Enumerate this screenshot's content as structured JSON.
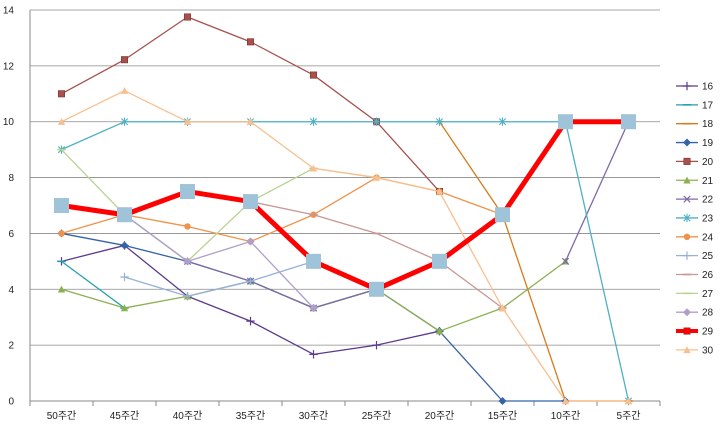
{
  "chart_data": {
    "type": "line",
    "categories": [
      "50주간",
      "45주간",
      "40주간",
      "35주간",
      "30주간",
      "25주간",
      "20주간",
      "15주간",
      "10주간",
      "5주간"
    ],
    "ylim": [
      0,
      14
    ],
    "yticks": [
      0,
      2,
      4,
      6,
      8,
      10,
      12,
      14
    ],
    "grid": true,
    "legend_position": "right",
    "series": [
      {
        "name": "16",
        "color": "#5b3b8c",
        "marker": "plus",
        "values": [
          5,
          5.57,
          3.75,
          2.86,
          1.67,
          2,
          2.5,
          null,
          null,
          null
        ]
      },
      {
        "name": "17",
        "color": "#23a0b0",
        "marker": "dash",
        "values": [
          5,
          3.33,
          null,
          null,
          null,
          null,
          null,
          null,
          null,
          null
        ]
      },
      {
        "name": "18",
        "color": "#d67a1e",
        "marker": "dash",
        "values": [
          null,
          null,
          null,
          null,
          null,
          null,
          10,
          6.67,
          0,
          0
        ]
      },
      {
        "name": "19",
        "color": "#3563a8",
        "marker": "diamond",
        "values": [
          6,
          5.57,
          5,
          4.29,
          3.33,
          4,
          2.5,
          0,
          0,
          null
        ]
      },
      {
        "name": "20",
        "color": "#a8504c",
        "marker": "square",
        "values": [
          11,
          12.22,
          13.75,
          12.86,
          11.67,
          10,
          7.5,
          null,
          null,
          null
        ]
      },
      {
        "name": "21",
        "color": "#8cb050",
        "marker": "triangle",
        "values": [
          4,
          3.33,
          3.75,
          4.29,
          3.33,
          4,
          2.5,
          3.33,
          5,
          null
        ]
      },
      {
        "name": "22",
        "color": "#7e6aa6",
        "marker": "x",
        "values": [
          null,
          6.67,
          5,
          4.29,
          3.33,
          4,
          null,
          null,
          5,
          10
        ]
      },
      {
        "name": "23",
        "color": "#4fb0c4",
        "marker": "star",
        "values": [
          9,
          10,
          10,
          10,
          10,
          10,
          10,
          10,
          10,
          0
        ]
      },
      {
        "name": "24",
        "color": "#f0924a",
        "marker": "circle",
        "values": [
          6,
          6.67,
          6.25,
          5.71,
          6.67,
          8,
          7.5,
          6.67,
          null,
          null
        ]
      },
      {
        "name": "25",
        "color": "#95b1d8",
        "marker": "plus",
        "values": [
          null,
          4.44,
          3.75,
          4.29,
          5,
          null,
          null,
          null,
          null,
          null
        ]
      },
      {
        "name": "26",
        "color": "#c99694",
        "marker": "dash",
        "values": [
          null,
          null,
          null,
          7.14,
          6.67,
          6,
          5,
          3.33,
          null,
          null
        ]
      },
      {
        "name": "27",
        "color": "#b8d290",
        "marker": "dash",
        "values": [
          9,
          6.67,
          5,
          7.14,
          8.33,
          8,
          null,
          null,
          null,
          null
        ]
      },
      {
        "name": "28",
        "color": "#b09fca",
        "marker": "diamond",
        "values": [
          null,
          6.67,
          5,
          5.71,
          3.33,
          null,
          null,
          null,
          null,
          null
        ]
      },
      {
        "name": "29",
        "color": "#ff0000",
        "marker": "square",
        "highlight": true,
        "values": [
          7,
          6.67,
          7.5,
          7.14,
          5,
          4,
          5,
          6.67,
          10,
          10
        ]
      },
      {
        "name": "30",
        "color": "#f9bf8f",
        "marker": "triangle",
        "values": [
          10,
          11.11,
          10,
          10,
          8.33,
          8,
          7.5,
          3.33,
          0,
          0
        ]
      }
    ]
  }
}
